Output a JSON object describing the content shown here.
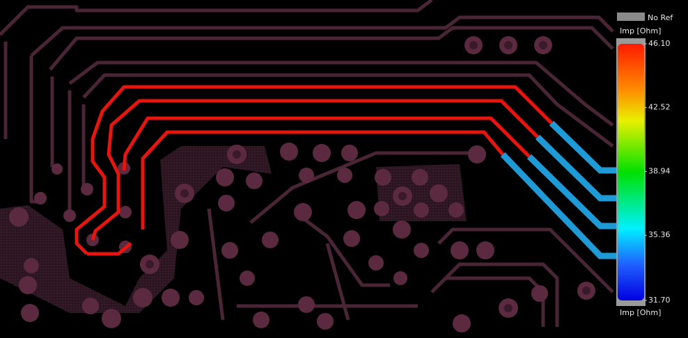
{
  "legend": {
    "no_ref": "No Ref",
    "title_top": "Imp [Ohm]",
    "ticks": [
      {
        "value": 46.1,
        "label": "46.10"
      },
      {
        "value": 42.52,
        "label": "42.52"
      },
      {
        "value": 38.94,
        "label": "38.94"
      },
      {
        "value": 35.36,
        "label": "35.36"
      },
      {
        "value": 31.7,
        "label": "31.70"
      }
    ],
    "title_bottom": "Imp [Ohm]"
  }
}
